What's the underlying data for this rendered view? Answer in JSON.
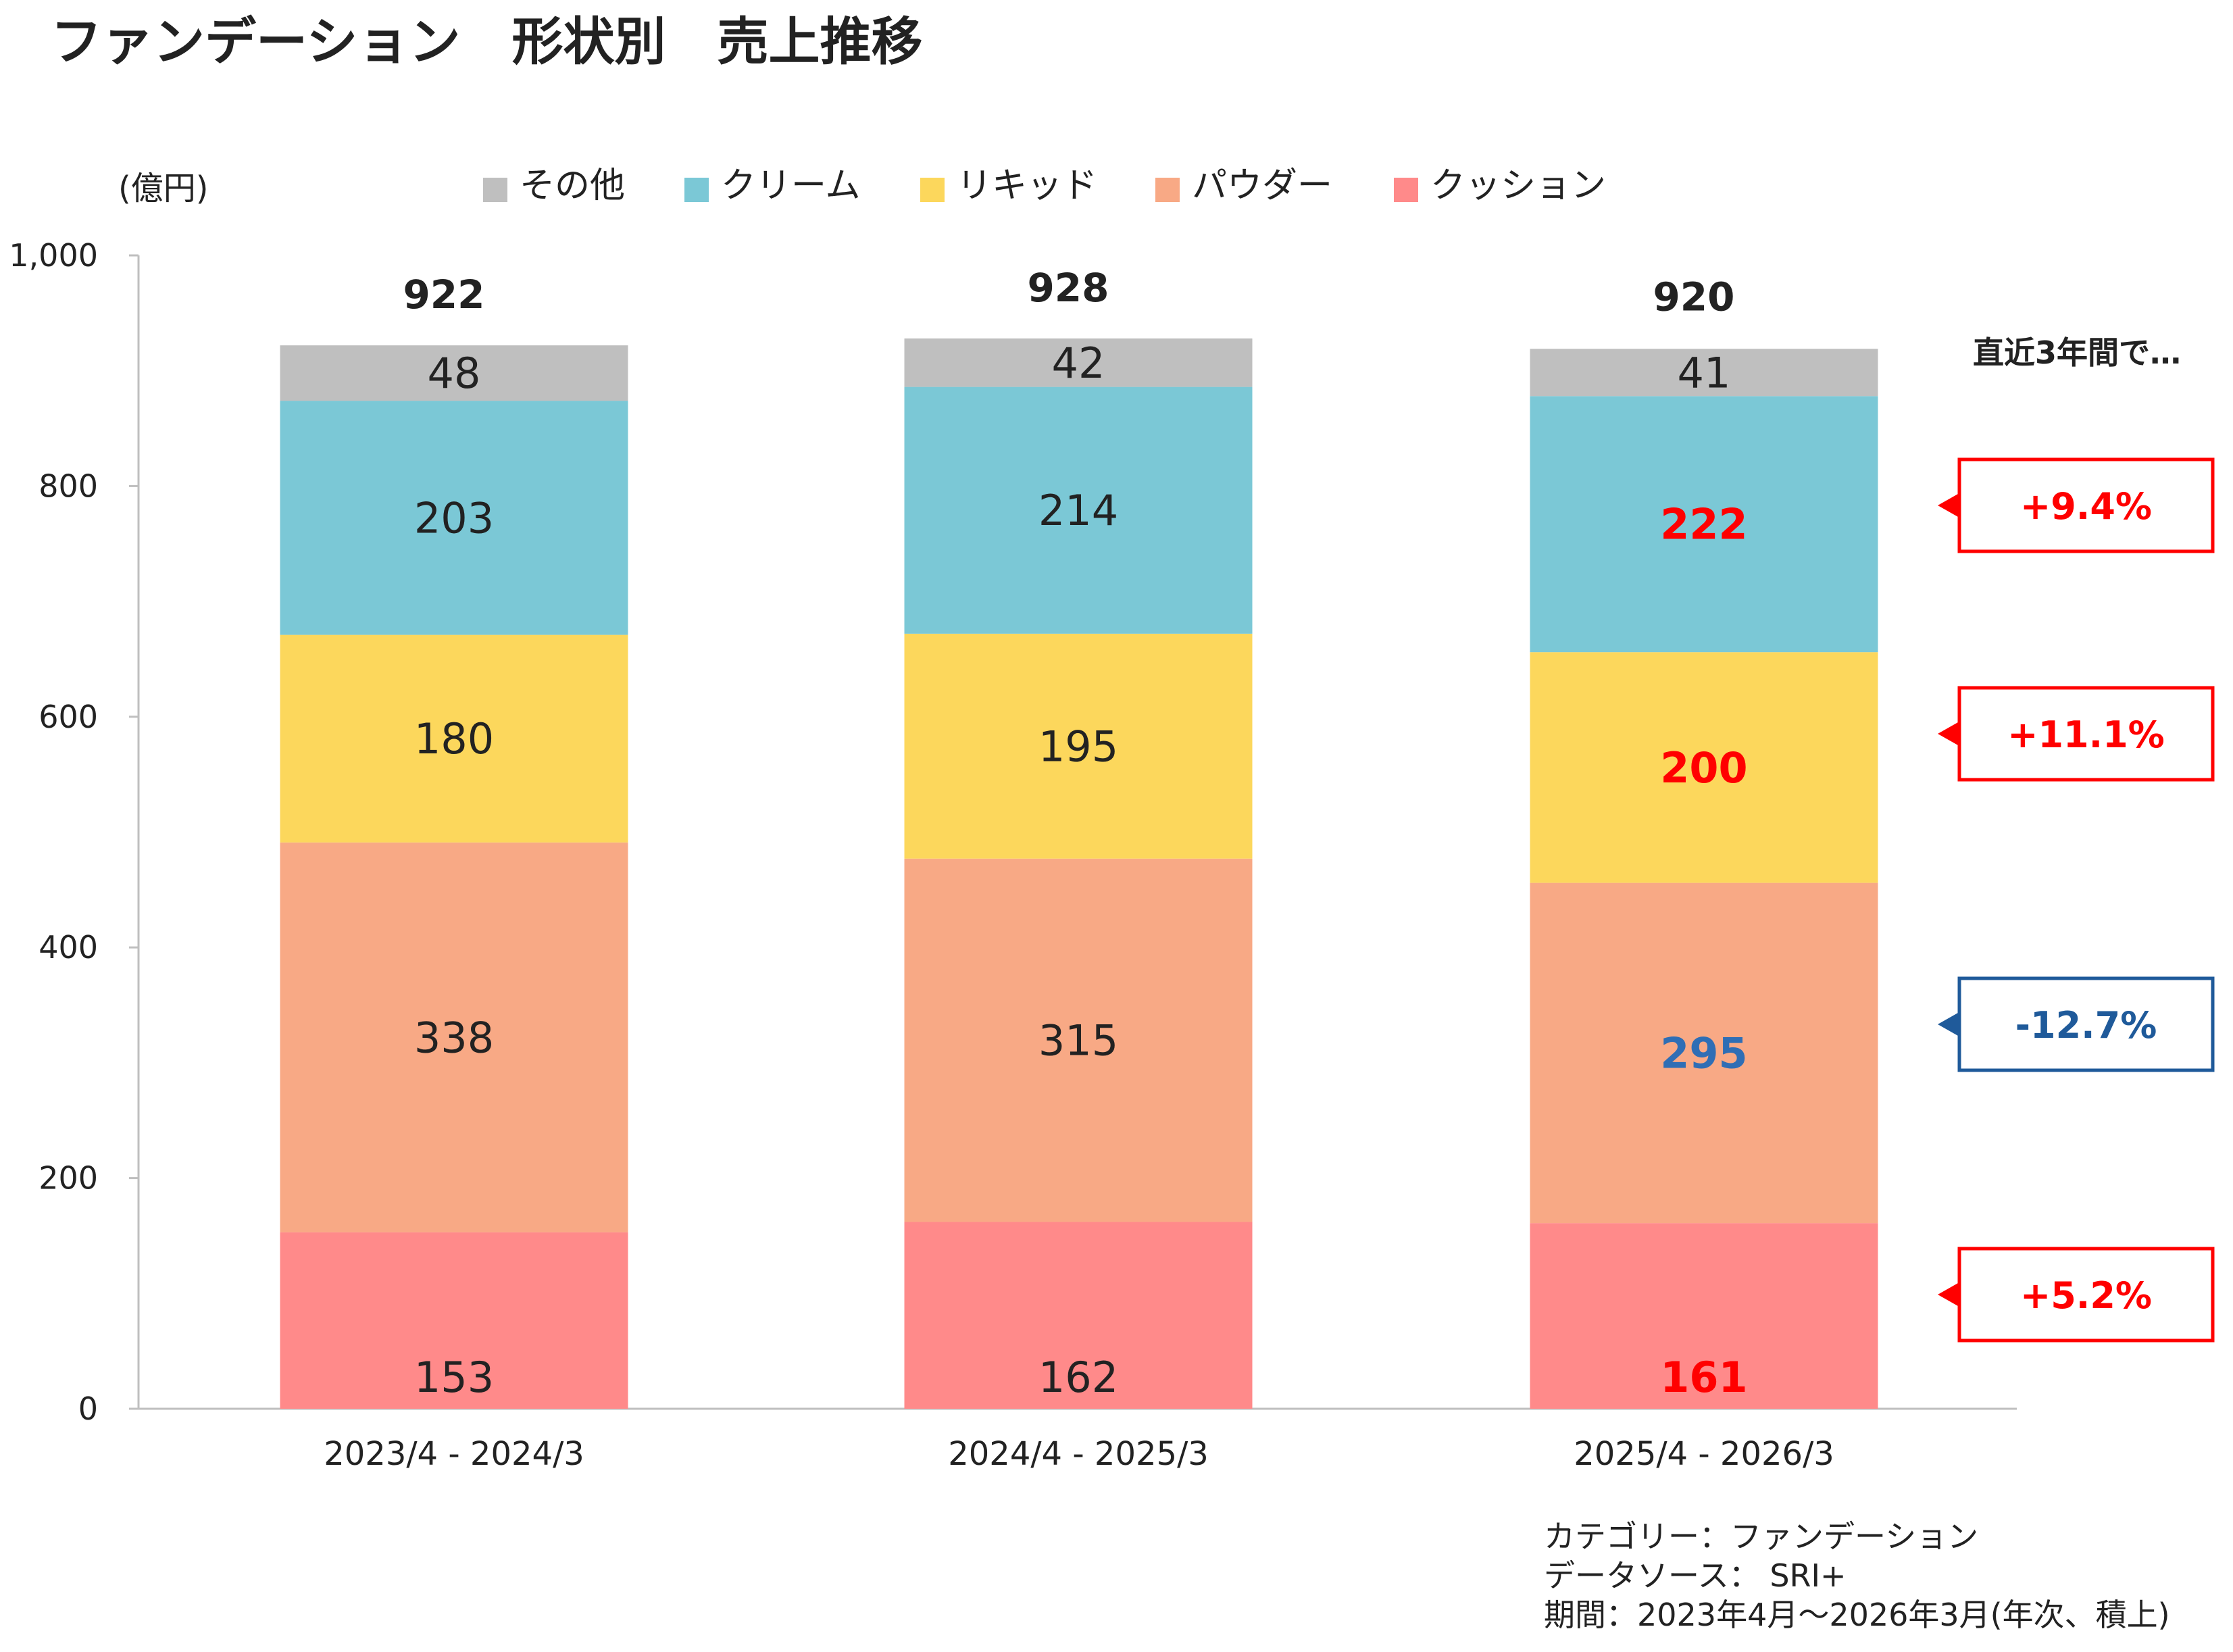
{
  "title": "ファンデーション　形状別　売上推移",
  "chart_data": {
    "type": "bar",
    "stacked": true,
    "ylabel": "(億円)",
    "ylim": [
      0,
      1000
    ],
    "yticks": [
      "0",
      "200",
      "400",
      "600",
      "800",
      "1,000"
    ],
    "ytick_values": [
      0,
      200,
      400,
      600,
      800,
      1000
    ],
    "categories": [
      "2023/4 - 2024/3",
      "2024/4 - 2025/3",
      "2025/4 - 2026/3"
    ],
    "totals": [
      "922",
      "928",
      "920"
    ],
    "total_values": [
      922,
      928,
      920
    ],
    "legend_position": "top",
    "series": [
      {
        "name": "クッション",
        "color": "#FF8A8A",
        "values": [
          153,
          162,
          161
        ]
      },
      {
        "name": "パウダー",
        "color": "#F8A985",
        "values": [
          338,
          315,
          295
        ]
      },
      {
        "name": "リキッド",
        "color": "#FCD75C",
        "values": [
          180,
          195,
          200
        ]
      },
      {
        "name": "クリーム",
        "color": "#7BC8D6",
        "values": [
          203,
          214,
          222
        ]
      },
      {
        "name": "その他",
        "color": "#BFBFBF",
        "values": [
          48,
          42,
          41
        ]
      }
    ],
    "legend_order": [
      "その他",
      "クリーム",
      "リキッド",
      "パウダー",
      "クッション"
    ],
    "highlight": {
      "series_colors": {
        "クッション": "#FF0000",
        "パウダー": "#2F6EB5",
        "リキッド": "#FF0000",
        "クリーム": "#FF0000"
      }
    }
  },
  "callout_header": "直近3年間で…",
  "callouts": [
    {
      "series": "クリーム",
      "text": "+9.4%",
      "color": "#FF0000"
    },
    {
      "series": "リキッド",
      "text": "+11.1%",
      "color": "#FF0000"
    },
    {
      "series": "パウダー",
      "text": "-12.7%",
      "color": "#1F5A9A"
    },
    {
      "series": "クッション",
      "text": "+5.2%",
      "color": "#FF0000"
    }
  ],
  "footnote": {
    "category": "カテゴリー：ファンデーション",
    "source": "データソース：  SRI+",
    "period": "期間：2023年4月～2026年3月(年次、積上)"
  }
}
